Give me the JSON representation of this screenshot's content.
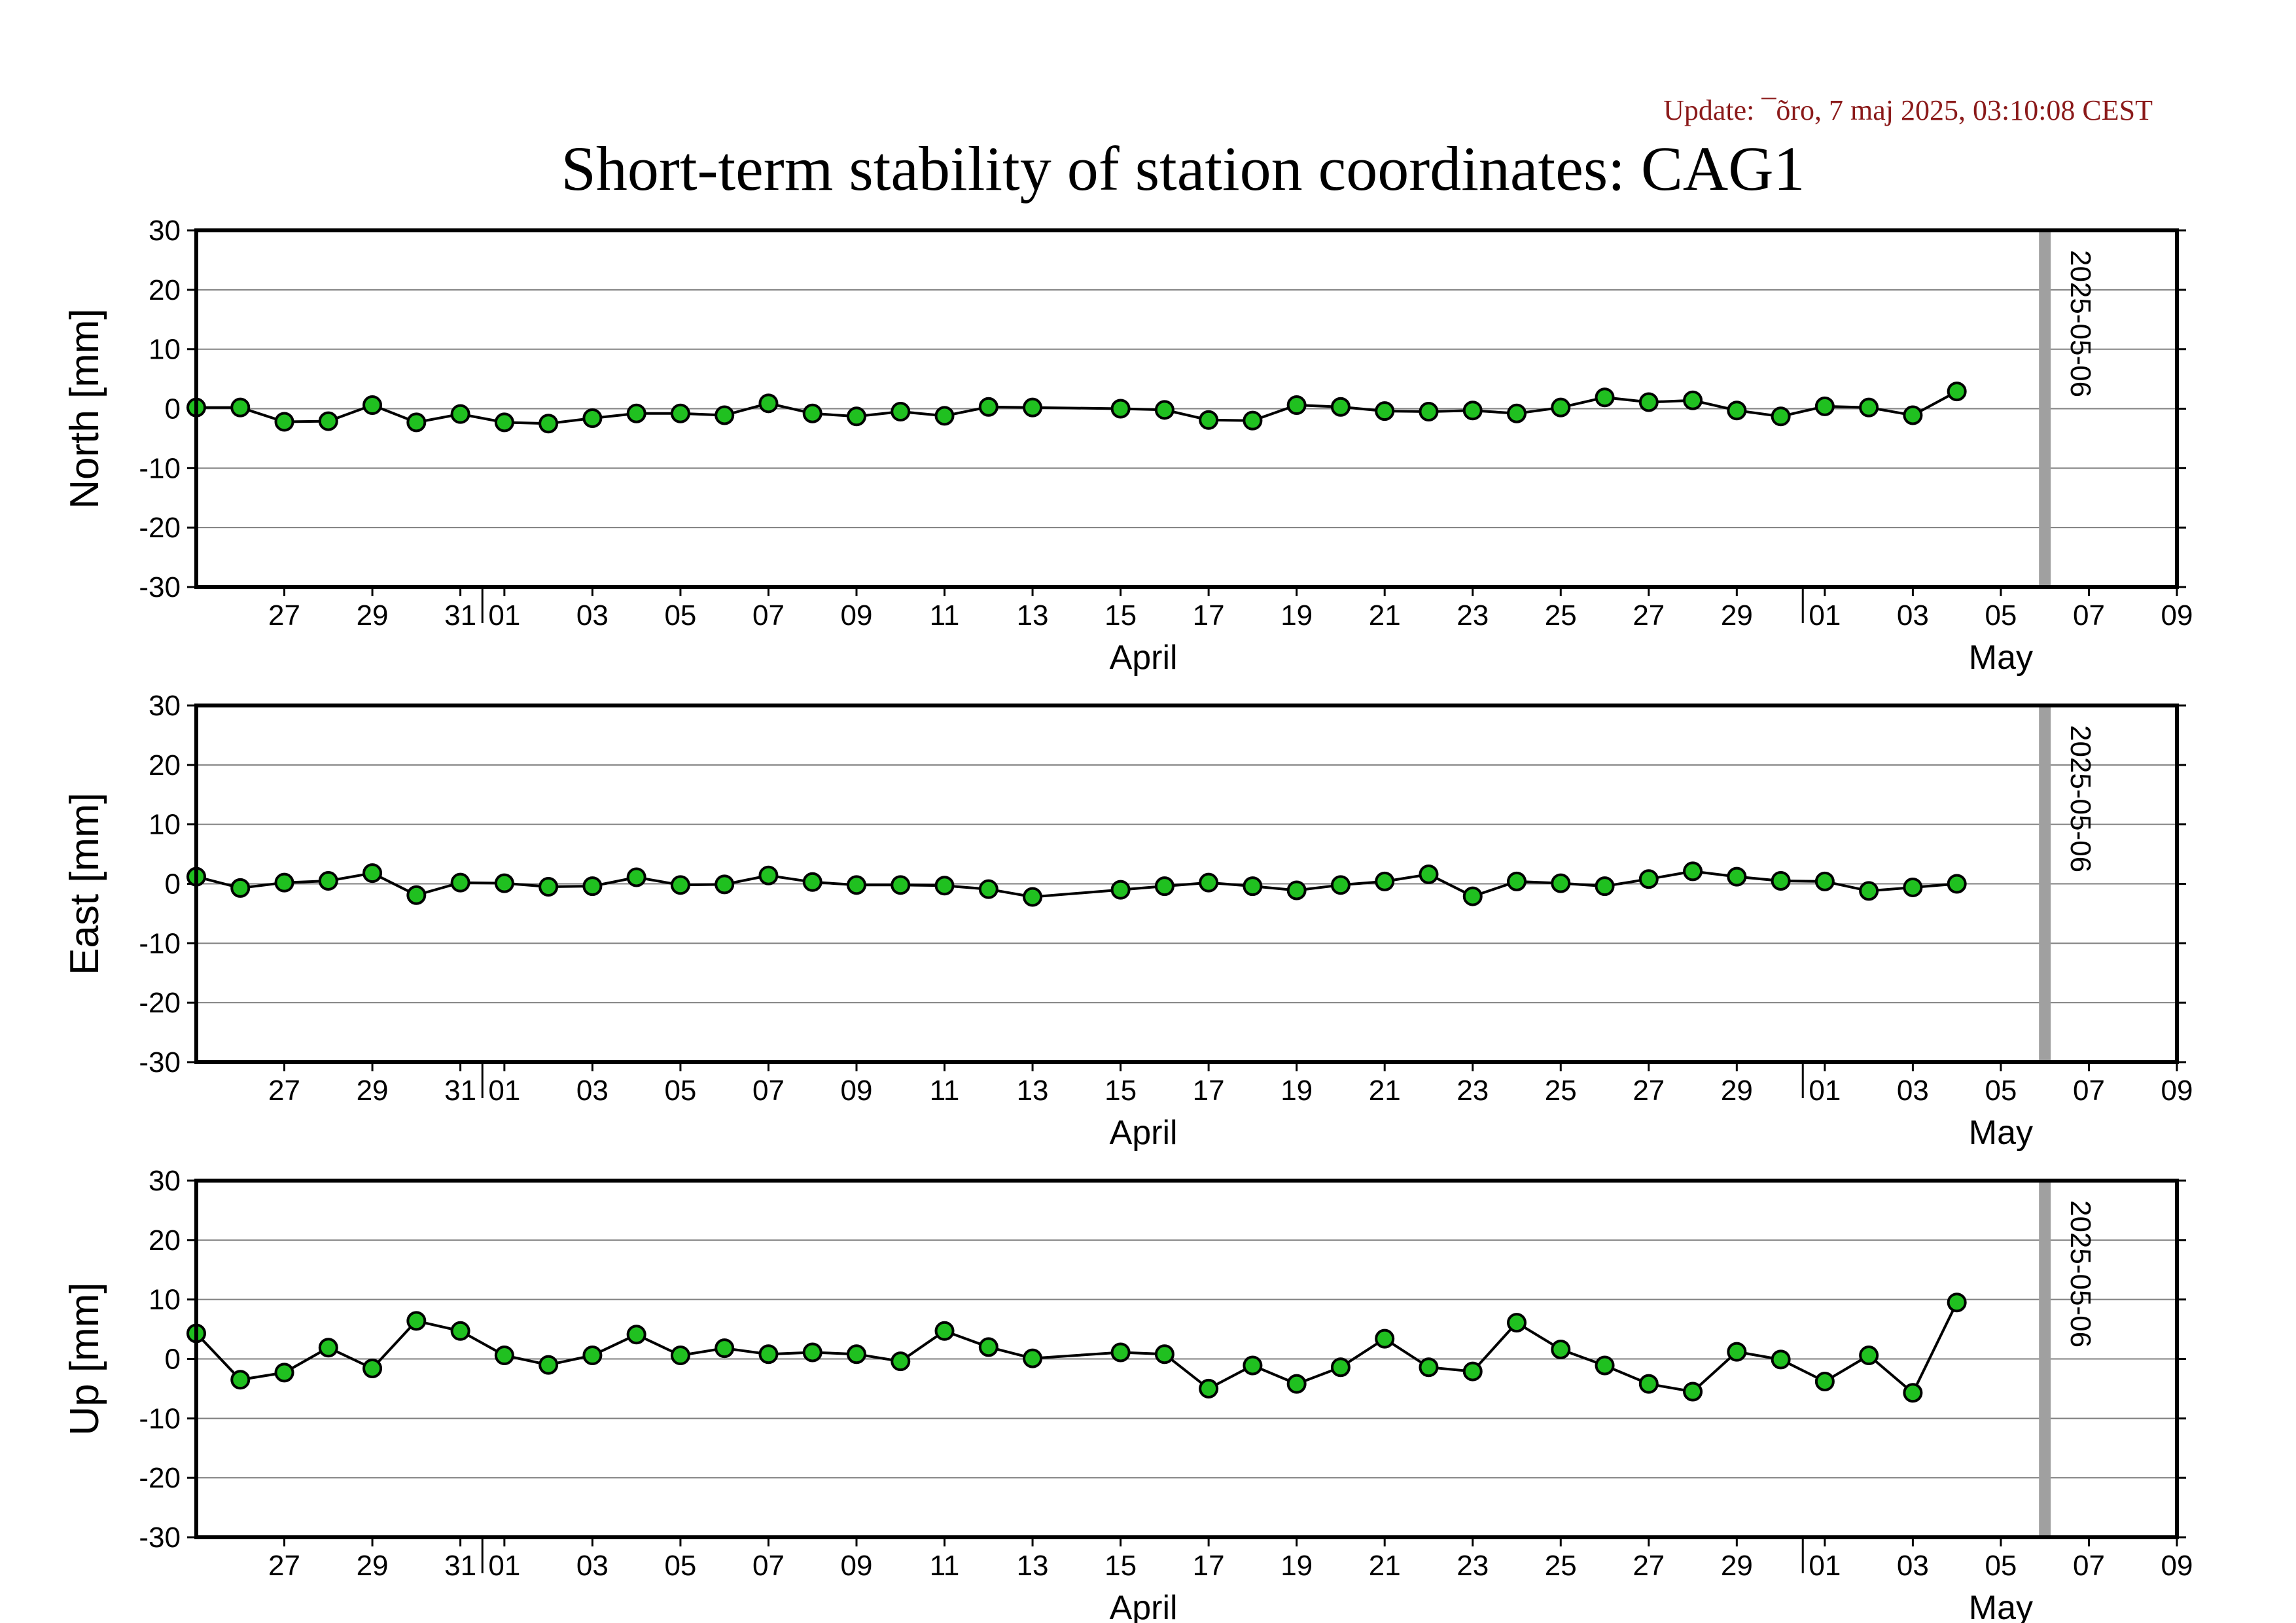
{
  "update_text": "Update: ¯õro, 7 maj 2025, 03:10:08 CEST",
  "title": "Short-term stability of station coordinates: CAG1",
  "marker_label": "2025-05-06",
  "colors": {
    "point_fill": "#20c020",
    "point_stroke": "#000000",
    "line": "#000000",
    "grid": "#808080",
    "marker": "#a0a0a0",
    "update_text": "#8b1a1a"
  },
  "x_axis": {
    "tick_labels": [
      "27",
      "29",
      "31",
      "01",
      "03",
      "05",
      "07",
      "09",
      "11",
      "13",
      "15",
      "17",
      "19",
      "21",
      "23",
      "25",
      "27",
      "29",
      "01",
      "03",
      "05",
      "07",
      "09"
    ],
    "month_labels": [
      "April",
      "May"
    ]
  },
  "y_axis": {
    "tick_labels": [
      "30",
      "20",
      "10",
      "0",
      "-10",
      "-20",
      "-30"
    ]
  },
  "chart_data": [
    {
      "type": "line",
      "ylabel": "North [mm]",
      "ylim": [
        -30,
        30
      ],
      "xlim": [
        "2025-03-25",
        "2025-05-09"
      ],
      "marker_date": "2025-05-06",
      "grid": true,
      "x": [
        "2025-03-25",
        "2025-03-26",
        "2025-03-27",
        "2025-03-28",
        "2025-03-29",
        "2025-03-30",
        "2025-03-31",
        "2025-04-01",
        "2025-04-02",
        "2025-04-03",
        "2025-04-04",
        "2025-04-05",
        "2025-04-06",
        "2025-04-07",
        "2025-04-08",
        "2025-04-09",
        "2025-04-10",
        "2025-04-11",
        "2025-04-12",
        "2025-04-13",
        "2025-04-15",
        "2025-04-16",
        "2025-04-17",
        "2025-04-18",
        "2025-04-19",
        "2025-04-20",
        "2025-04-21",
        "2025-04-22",
        "2025-04-23",
        "2025-04-24",
        "2025-04-25",
        "2025-04-26",
        "2025-04-27",
        "2025-04-28",
        "2025-04-29",
        "2025-04-30",
        "2025-05-01",
        "2025-05-02",
        "2025-05-03",
        "2025-05-04"
      ],
      "y": [
        0.2,
        0.2,
        -2.2,
        -2.1,
        0.6,
        -2.3,
        -0.9,
        -2.3,
        -2.5,
        -1.6,
        -0.8,
        -0.8,
        -1.1,
        0.9,
        -0.8,
        -1.3,
        -0.5,
        -1.2,
        0.3,
        0.2,
        0.0,
        -0.2,
        -1.9,
        -2.0,
        0.6,
        0.3,
        -0.4,
        -0.5,
        -0.3,
        -0.8,
        0.2,
        1.9,
        1.1,
        1.4,
        -0.3,
        -1.3,
        0.4,
        0.2,
        -1.1,
        2.9
      ]
    },
    {
      "type": "line",
      "ylabel": "East [mm]",
      "ylim": [
        -30,
        30
      ],
      "xlim": [
        "2025-03-25",
        "2025-05-09"
      ],
      "marker_date": "2025-05-06",
      "grid": true,
      "x": [
        "2025-03-25",
        "2025-03-26",
        "2025-03-27",
        "2025-03-28",
        "2025-03-29",
        "2025-03-30",
        "2025-03-31",
        "2025-04-01",
        "2025-04-02",
        "2025-04-03",
        "2025-04-04",
        "2025-04-05",
        "2025-04-06",
        "2025-04-07",
        "2025-04-08",
        "2025-04-09",
        "2025-04-10",
        "2025-04-11",
        "2025-04-12",
        "2025-04-13",
        "2025-04-15",
        "2025-04-16",
        "2025-04-17",
        "2025-04-18",
        "2025-04-19",
        "2025-04-20",
        "2025-04-21",
        "2025-04-22",
        "2025-04-23",
        "2025-04-24",
        "2025-04-25",
        "2025-04-26",
        "2025-04-27",
        "2025-04-28",
        "2025-04-29",
        "2025-04-30",
        "2025-05-01",
        "2025-05-02",
        "2025-05-03",
        "2025-05-04"
      ],
      "y": [
        1.2,
        -0.7,
        0.2,
        0.5,
        1.8,
        -1.9,
        0.2,
        0.1,
        -0.5,
        -0.4,
        1.1,
        -0.2,
        -0.1,
        1.4,
        0.3,
        -0.2,
        -0.2,
        -0.3,
        -0.9,
        -2.2,
        -1.0,
        -0.4,
        0.2,
        -0.4,
        -1.1,
        -0.2,
        0.4,
        1.6,
        -2.1,
        0.4,
        0.1,
        -0.4,
        0.8,
        2.1,
        1.2,
        0.5,
        0.4,
        -1.2,
        -0.6,
        0.0
      ]
    },
    {
      "type": "line",
      "ylabel": "Up [mm]",
      "ylim": [
        -30,
        30
      ],
      "xlim": [
        "2025-03-25",
        "2025-05-09"
      ],
      "marker_date": "2025-05-06",
      "grid": true,
      "x": [
        "2025-03-25",
        "2025-03-26",
        "2025-03-27",
        "2025-03-28",
        "2025-03-29",
        "2025-03-30",
        "2025-03-31",
        "2025-04-01",
        "2025-04-02",
        "2025-04-03",
        "2025-04-04",
        "2025-04-05",
        "2025-04-06",
        "2025-04-07",
        "2025-04-08",
        "2025-04-09",
        "2025-04-10",
        "2025-04-11",
        "2025-04-12",
        "2025-04-13",
        "2025-04-15",
        "2025-04-16",
        "2025-04-17",
        "2025-04-18",
        "2025-04-19",
        "2025-04-20",
        "2025-04-21",
        "2025-04-22",
        "2025-04-23",
        "2025-04-24",
        "2025-04-25",
        "2025-04-26",
        "2025-04-27",
        "2025-04-28",
        "2025-04-29",
        "2025-04-30",
        "2025-05-01",
        "2025-05-02",
        "2025-05-03",
        "2025-05-04"
      ],
      "y": [
        4.3,
        -3.5,
        -2.3,
        1.9,
        -1.6,
        6.4,
        4.7,
        0.6,
        -1.0,
        0.6,
        4.1,
        0.6,
        1.8,
        0.8,
        1.1,
        0.8,
        -0.4,
        4.7,
        2.0,
        0.1,
        1.1,
        0.8,
        -5.0,
        -1.1,
        -4.2,
        -1.4,
        3.4,
        -1.4,
        -2.1,
        6.1,
        1.6,
        -1.1,
        -4.2,
        -5.5,
        1.2,
        -0.1,
        -3.8,
        0.6,
        -5.7,
        9.5
      ]
    }
  ]
}
